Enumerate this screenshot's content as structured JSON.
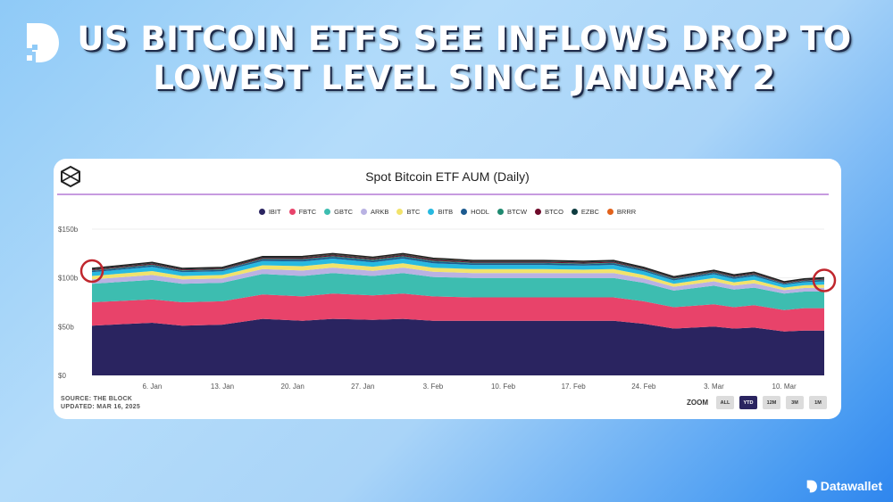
{
  "headline": {
    "line1": "US BITCOIN ETFS SEE INFLOWS DROP TO",
    "line2": "LOWEST LEVEL SINCE JANUARY 2"
  },
  "brand": {
    "name": "Datawallet"
  },
  "card": {
    "source": "SOURCE: THE BLOCK",
    "updated": "UPDATED: MAR 16, 2025",
    "zoom_label": "ZOOM",
    "zoom_options": [
      {
        "label": "ALL",
        "active": false
      },
      {
        "label": "YTD",
        "active": true
      },
      {
        "label": "12M",
        "active": false
      },
      {
        "label": "3M",
        "active": false
      },
      {
        "label": "1M",
        "active": false
      }
    ]
  },
  "chart_data": {
    "type": "area",
    "stacked": true,
    "title": "Spot Bitcoin ETF AUM (Daily)",
    "xlabel": "",
    "ylabel": "",
    "ylim": [
      0,
      150
    ],
    "y_ticks": [
      "$0",
      "$50b",
      "$100b",
      "$150b"
    ],
    "y_tick_values": [
      0,
      50,
      100,
      150
    ],
    "x_ticks": [
      "6. Jan",
      "13. Jan",
      "20. Jan",
      "27. Jan",
      "3. Feb",
      "10. Feb",
      "17. Feb",
      "24. Feb",
      "3. Mar",
      "10. Mar"
    ],
    "x_tick_dates": [
      "2025-01-06",
      "2025-01-13",
      "2025-01-20",
      "2025-01-27",
      "2025-02-03",
      "2025-02-10",
      "2025-02-17",
      "2025-02-24",
      "2025-03-03",
      "2025-03-10"
    ],
    "legend_position": "top",
    "grid": true,
    "x": [
      "2024-12-31",
      "2025-01-06",
      "2025-01-09",
      "2025-01-13",
      "2025-01-17",
      "2025-01-21",
      "2025-01-24",
      "2025-01-28",
      "2025-01-31",
      "2025-02-03",
      "2025-02-07",
      "2025-02-10",
      "2025-02-14",
      "2025-02-18",
      "2025-02-21",
      "2025-02-24",
      "2025-02-27",
      "2025-03-03",
      "2025-03-05",
      "2025-03-07",
      "2025-03-10",
      "2025-03-12",
      "2025-03-14"
    ],
    "series": [
      {
        "name": "IBIT",
        "color": "#2a2460",
        "values": [
          51,
          54,
          51,
          52,
          58,
          56,
          58,
          57,
          58,
          56,
          56,
          56,
          56,
          56,
          56,
          53,
          48,
          50,
          48,
          49,
          45,
          46,
          46
        ]
      },
      {
        "name": "FBTC",
        "color": "#e8436a",
        "values": [
          24,
          24,
          24,
          24,
          25,
          25,
          26,
          25,
          26,
          25,
          24,
          24,
          24,
          24,
          24,
          23,
          22,
          23,
          22,
          23,
          22,
          23,
          23
        ]
      },
      {
        "name": "GBTC",
        "color": "#3dbdb0",
        "values": [
          19,
          20,
          19,
          19,
          21,
          21,
          21,
          20,
          21,
          20,
          20,
          20,
          20,
          20,
          20,
          19,
          17,
          19,
          18,
          18,
          17,
          17,
          17
        ]
      },
      {
        "name": "ARKB",
        "color": "#b9b2e3",
        "values": [
          4.5,
          5.0,
          4.5,
          4.5,
          5.0,
          5.6,
          5.6,
          5.3,
          5.6,
          5.3,
          5.0,
          5.0,
          5.0,
          4.8,
          5.0,
          4.5,
          3.9,
          4.5,
          4.2,
          4.5,
          3.4,
          3.6,
          3.9
        ]
      },
      {
        "name": "BTC",
        "color": "#f2e36b",
        "values": [
          3.5,
          4.0,
          3.5,
          3.5,
          4.0,
          4.4,
          4.4,
          4.2,
          4.4,
          4.2,
          4.0,
          4.0,
          4.0,
          3.7,
          4.0,
          3.5,
          3.1,
          3.5,
          3.3,
          3.5,
          2.6,
          2.9,
          3.1
        ]
      },
      {
        "name": "BITB",
        "color": "#27b9e0",
        "values": [
          3.8,
          4.3,
          3.8,
          3.8,
          4.3,
          4.8,
          4.8,
          4.6,
          4.8,
          4.6,
          4.3,
          4.3,
          4.3,
          4.1,
          4.3,
          3.8,
          3.4,
          3.8,
          3.6,
          3.8,
          2.9,
          3.1,
          3.4
        ]
      },
      {
        "name": "HODL",
        "color": "#1c5a8f",
        "values": [
          1.4,
          1.6,
          1.4,
          1.4,
          1.6,
          1.8,
          1.8,
          1.7,
          1.8,
          1.7,
          1.6,
          1.6,
          1.6,
          1.5,
          1.6,
          1.4,
          1.3,
          1.4,
          1.4,
          1.4,
          1.1,
          1.2,
          1.3
        ]
      },
      {
        "name": "BTCW",
        "color": "#1f8a70",
        "values": [
          0.6,
          0.7,
          0.6,
          0.6,
          0.7,
          0.8,
          0.8,
          0.8,
          0.8,
          0.8,
          0.7,
          0.7,
          0.7,
          0.7,
          0.7,
          0.6,
          0.6,
          0.6,
          0.6,
          0.6,
          0.5,
          0.5,
          0.6
        ]
      },
      {
        "name": "BTCO",
        "color": "#6e0a2a",
        "values": [
          0.8,
          0.9,
          0.8,
          0.8,
          0.9,
          1.0,
          1.0,
          1.0,
          1.0,
          1.0,
          0.9,
          0.9,
          0.9,
          0.9,
          0.9,
          0.8,
          0.7,
          0.8,
          0.8,
          0.8,
          0.6,
          0.7,
          0.7
        ]
      },
      {
        "name": "EZBC",
        "color": "#0d3b3f",
        "values": [
          0.6,
          0.7,
          0.6,
          0.6,
          0.7,
          0.8,
          0.8,
          0.8,
          0.8,
          0.8,
          0.7,
          0.7,
          0.7,
          0.7,
          0.7,
          0.6,
          0.6,
          0.6,
          0.6,
          0.6,
          0.5,
          0.5,
          0.6
        ]
      },
      {
        "name": "BRRR",
        "color": "#e2621b",
        "values": [
          0.6,
          0.7,
          0.6,
          0.6,
          0.7,
          0.8,
          0.8,
          0.8,
          0.8,
          0.8,
          0.7,
          0.7,
          0.7,
          0.7,
          0.7,
          0.6,
          0.6,
          0.6,
          0.6,
          0.6,
          0.5,
          0.5,
          0.6
        ]
      }
    ],
    "annotations": [
      {
        "type": "circle",
        "color": "#c0262d",
        "at": "2024-12-31"
      },
      {
        "type": "circle",
        "color": "#c0262d",
        "at": "2025-03-14"
      }
    ]
  }
}
